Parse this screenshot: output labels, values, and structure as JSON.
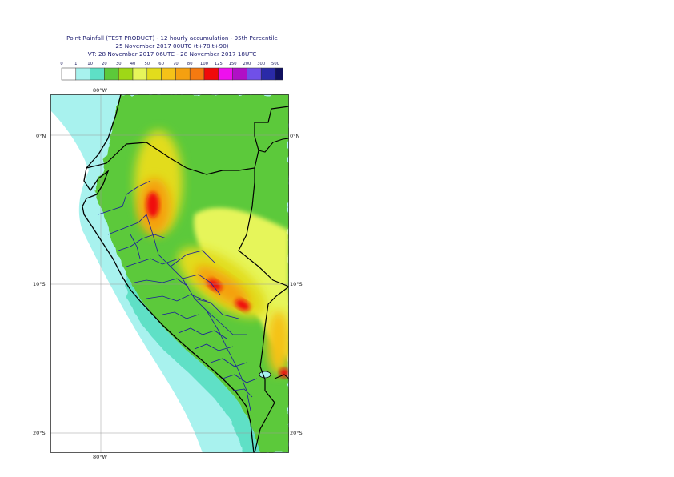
{
  "header": {
    "title_line1": "Point Rainfall (TEST PRODUCT) - 12 hourly accumulation - 95th Percentile",
    "title_line2": "25 November 2017 00UTC (t+78,t+90)",
    "title_line3": "VT: 28 November 2017 06UTC - 28 November 2017 18UTC"
  },
  "legend": {
    "thresholds": [
      "0",
      "1",
      "10",
      "20",
      "30",
      "40",
      "50",
      "60",
      "70",
      "80",
      "100",
      "125",
      "150",
      "200",
      "300",
      "500"
    ],
    "colors": [
      "#ffffff",
      "#a8f2ee",
      "#5ee0c6",
      "#5cc93a",
      "#9fd716",
      "#e6f55a",
      "#e2dc1c",
      "#f5c218",
      "#f5a010",
      "#f57a10",
      "#f00a0a",
      "#ee10ee",
      "#b010c6",
      "#7050e8",
      "#2a2aa8",
      "#10105e"
    ]
  },
  "map": {
    "lat_labels_right": [
      "0°N",
      "10°S",
      "20°S"
    ],
    "lat_labels_left": [
      "0°N",
      "10°S",
      "20°S"
    ],
    "lon_label_top": "80°W",
    "lon_label_bottom": "80°W",
    "ocean_color": "#a8f2ee",
    "border_color": "#000000",
    "admin_border_color": "#1a1a9e"
  }
}
